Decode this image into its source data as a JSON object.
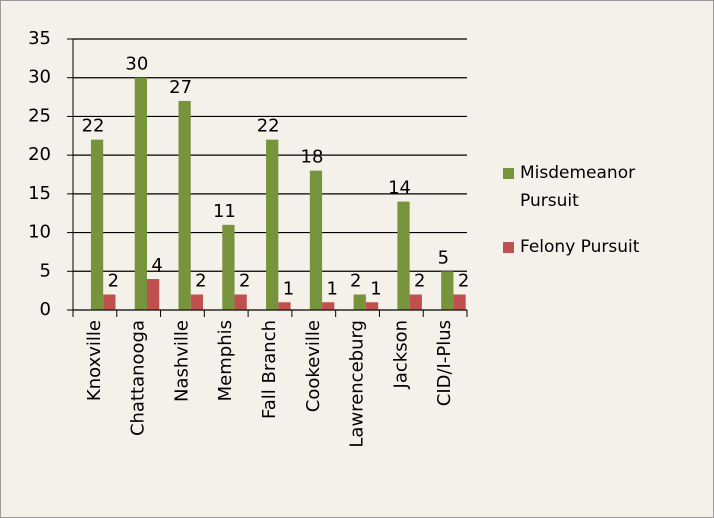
{
  "chart_data": {
    "type": "bar",
    "categories": [
      "Knoxville",
      "Chattanooga",
      "Nashville",
      "Memphis",
      "Fall Branch",
      "Cookeville",
      "Lawrenceburg",
      "Jackson",
      "CID/I-Plus"
    ],
    "series": [
      {
        "name": "Misdemeanor Pursuit",
        "color": "#77933c",
        "values": [
          22,
          30,
          27,
          11,
          22,
          18,
          2,
          14,
          5
        ]
      },
      {
        "name": "Felony Pursuit",
        "color": "#c0504d",
        "values": [
          2,
          4,
          2,
          2,
          1,
          1,
          1,
          2,
          2
        ]
      }
    ],
    "ylim": [
      0,
      35
    ],
    "yticks": [
      0,
      5,
      10,
      15,
      20,
      25,
      30,
      35
    ],
    "grid": true,
    "legend": "right"
  }
}
